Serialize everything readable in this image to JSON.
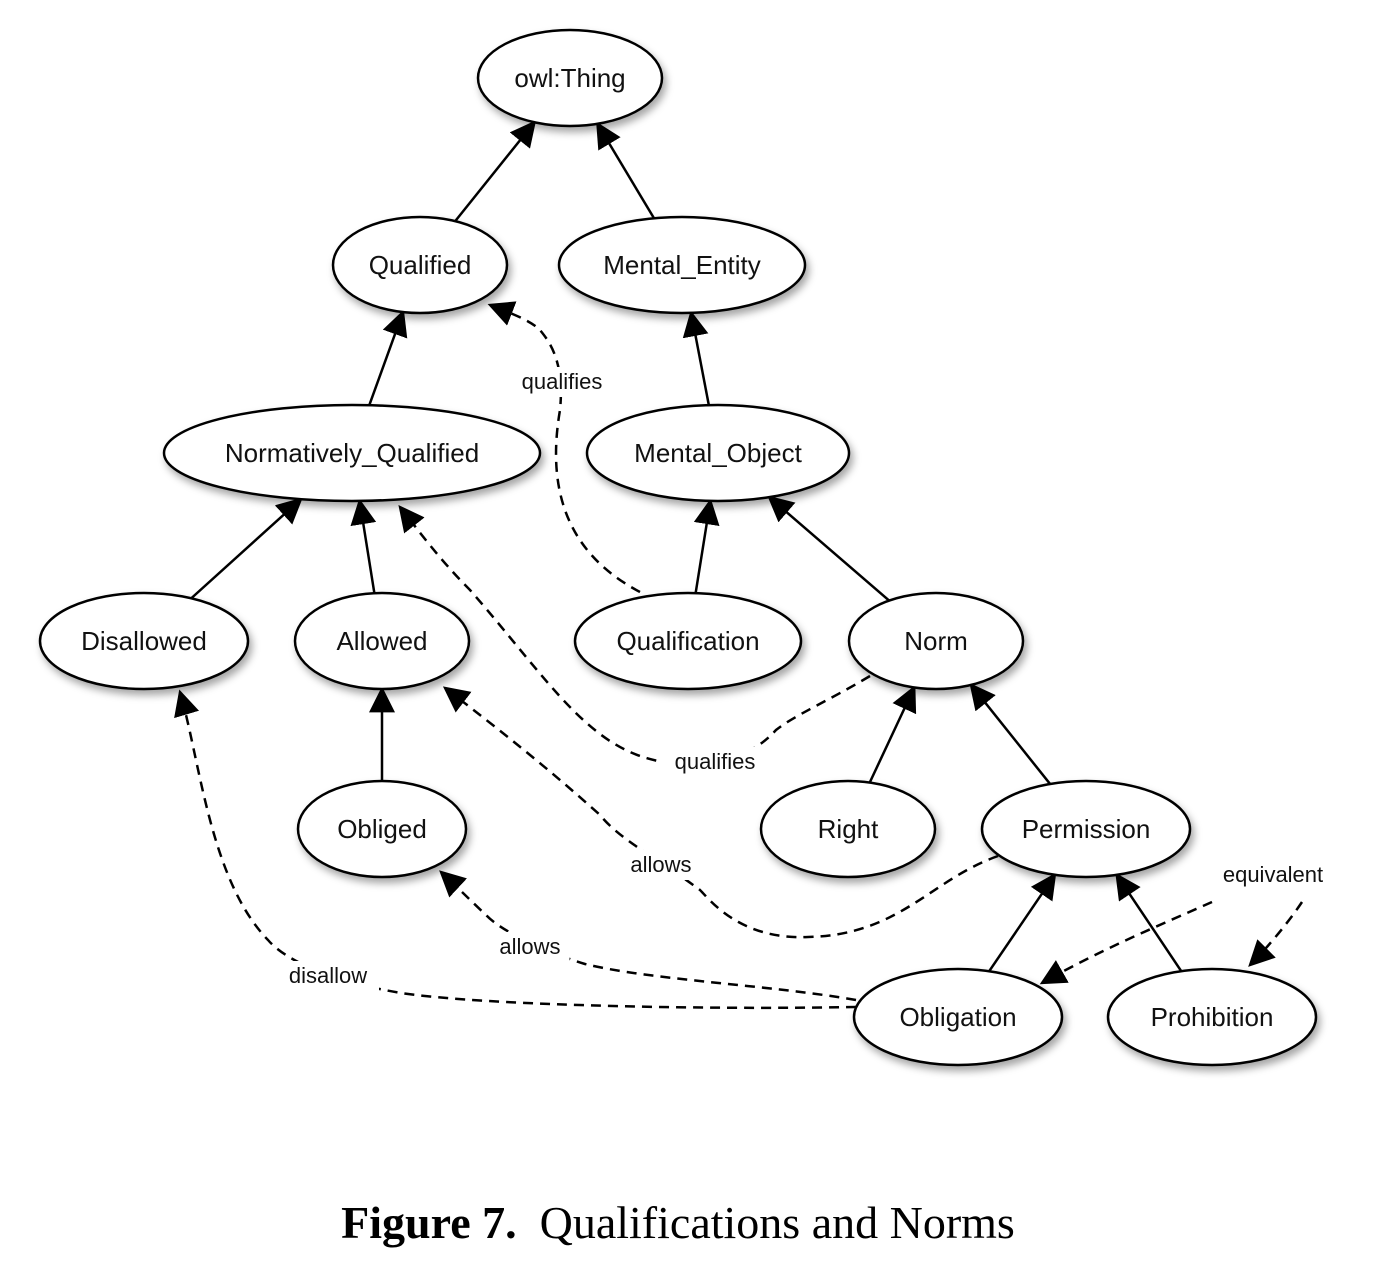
{
  "nodes": [
    {
      "id": "owl_thing",
      "label": "owl:Thing"
    },
    {
      "id": "qualified",
      "label": "Qualified"
    },
    {
      "id": "mental_entity",
      "label": "Mental_Entity"
    },
    {
      "id": "normatively_qualified",
      "label": "Normatively_Qualified"
    },
    {
      "id": "mental_object",
      "label": "Mental_Object"
    },
    {
      "id": "disallowed",
      "label": "Disallowed"
    },
    {
      "id": "allowed",
      "label": "Allowed"
    },
    {
      "id": "qualification",
      "label": "Qualification"
    },
    {
      "id": "norm",
      "label": "Norm"
    },
    {
      "id": "obliged",
      "label": "Obliged"
    },
    {
      "id": "right",
      "label": "Right"
    },
    {
      "id": "permission",
      "label": "Permission"
    },
    {
      "id": "obligation",
      "label": "Obligation"
    },
    {
      "id": "prohibition",
      "label": "Prohibition"
    }
  ],
  "edges": [
    {
      "from": "qualified",
      "to": "owl_thing",
      "style": "solid"
    },
    {
      "from": "mental_entity",
      "to": "owl_thing",
      "style": "solid"
    },
    {
      "from": "normatively_qualified",
      "to": "qualified",
      "style": "solid"
    },
    {
      "from": "mental_object",
      "to": "mental_entity",
      "style": "solid"
    },
    {
      "from": "disallowed",
      "to": "normatively_qualified",
      "style": "solid"
    },
    {
      "from": "allowed",
      "to": "normatively_qualified",
      "style": "solid"
    },
    {
      "from": "qualification",
      "to": "mental_object",
      "style": "solid"
    },
    {
      "from": "norm",
      "to": "mental_object",
      "style": "solid"
    },
    {
      "from": "obliged",
      "to": "allowed",
      "style": "solid"
    },
    {
      "from": "right",
      "to": "norm",
      "style": "solid"
    },
    {
      "from": "permission",
      "to": "norm",
      "style": "solid"
    },
    {
      "from": "obligation",
      "to": "permission",
      "style": "solid"
    },
    {
      "from": "prohibition",
      "to": "permission",
      "style": "solid"
    },
    {
      "from": "qualification",
      "to": "qualified",
      "style": "dashed",
      "label": "qualifies"
    },
    {
      "from": "norm",
      "to": "normatively_qualified",
      "style": "dashed",
      "label": "qualifies"
    },
    {
      "from": "permission",
      "to": "allowed",
      "style": "dashed",
      "label": "allows"
    },
    {
      "from": "obligation",
      "to": "obliged",
      "style": "dashed",
      "label": "allows"
    },
    {
      "from": "obligation",
      "to": "disallowed",
      "style": "dashed",
      "label": "disallow"
    },
    {
      "from": "prohibition",
      "to": "obligation",
      "style": "dashed",
      "label": "equivalent"
    }
  ],
  "caption": {
    "number": "Figure 7.",
    "text": "Qualifications and Norms"
  }
}
